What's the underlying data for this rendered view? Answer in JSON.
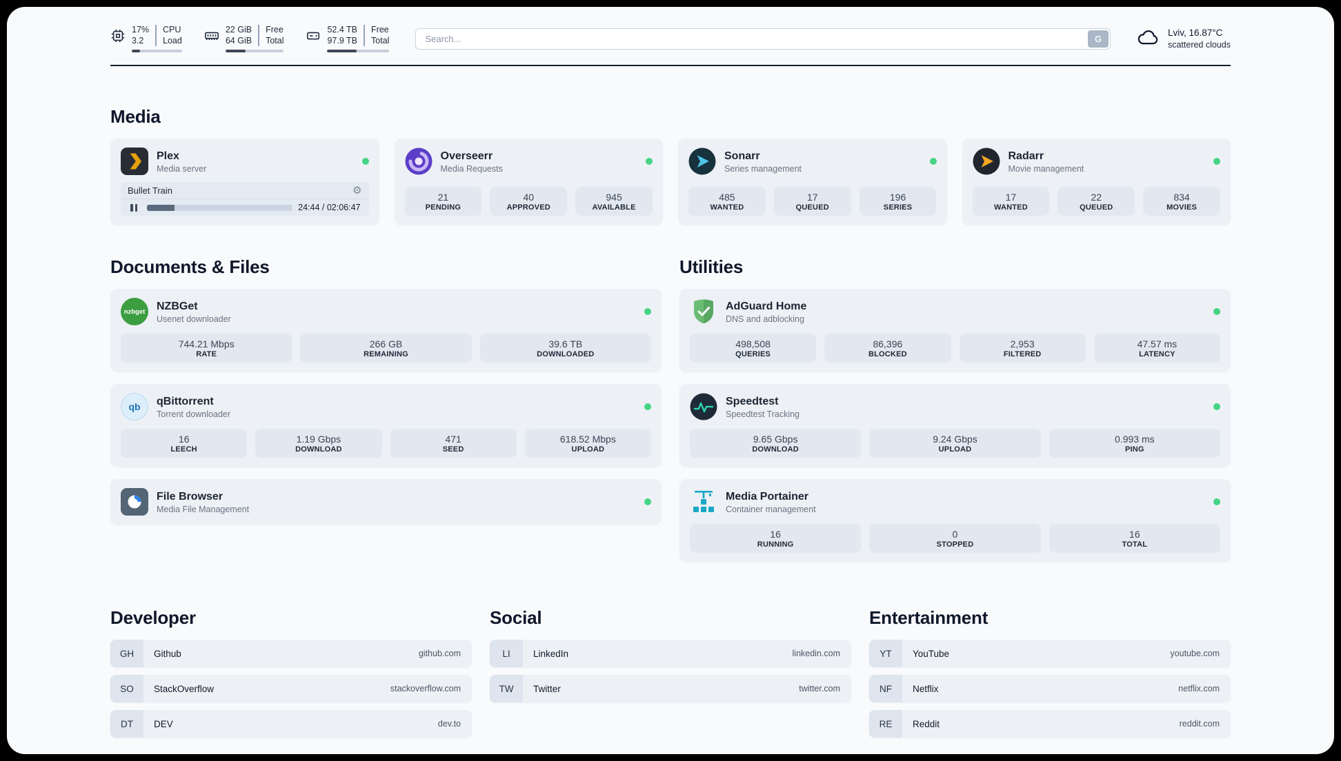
{
  "colors": {
    "page_bg": "#f8fafc",
    "card_bg": "#edf1f6",
    "stat_bg": "#e2e8f0",
    "abbr_bg": "#dee5ee",
    "status_green": "#45d483"
  },
  "topbar": {
    "cpu": {
      "percent": "17%",
      "load": "3.2",
      "label_top": "CPU",
      "label_bottom": "Load",
      "bar_percent": 17
    },
    "memory": {
      "free": "22 GiB",
      "total": "64 GiB",
      "label_top": "Free",
      "label_bottom": "Total",
      "bar_percent": 34
    },
    "disk": {
      "free": "52.4 TB",
      "total": "97.9 TB",
      "label_top": "Free",
      "label_bottom": "Total",
      "bar_percent": 47
    },
    "search": {
      "placeholder": "Search...",
      "button_label": "G"
    },
    "weather": {
      "location": "Lviv, 16.87°C",
      "condition": "scattered clouds"
    }
  },
  "sections": {
    "media": {
      "title": "Media",
      "apps": [
        {
          "name": "Plex",
          "desc": "Media server",
          "player": {
            "title": "Bullet Train",
            "time": "24:44 / 02:06:47",
            "progress": 19
          }
        },
        {
          "name": "Overseerr",
          "desc": "Media Requests",
          "stats": [
            {
              "value": "21",
              "label": "PENDING"
            },
            {
              "value": "40",
              "label": "APPROVED"
            },
            {
              "value": "945",
              "label": "AVAILABLE"
            }
          ]
        },
        {
          "name": "Sonarr",
          "desc": "Series management",
          "stats": [
            {
              "value": "485",
              "label": "WANTED"
            },
            {
              "value": "17",
              "label": "QUEUED"
            },
            {
              "value": "196",
              "label": "SERIES"
            }
          ]
        },
        {
          "name": "Radarr",
          "desc": "Movie management",
          "stats": [
            {
              "value": "17",
              "label": "WANTED"
            },
            {
              "value": "22",
              "label": "QUEUED"
            },
            {
              "value": "834",
              "label": "MOVIES"
            }
          ]
        }
      ]
    },
    "documents": {
      "title": "Documents & Files",
      "apps": [
        {
          "name": "NZBGet",
          "desc": "Usenet downloader",
          "icon_text": "nzbget",
          "stats": [
            {
              "value": "744.21 Mbps",
              "label": "RATE"
            },
            {
              "value": "266 GB",
              "label": "REMAINING"
            },
            {
              "value": "39.6 TB",
              "label": "DOWNLOADED"
            }
          ]
        },
        {
          "name": "qBittorrent",
          "desc": "Torrent downloader",
          "icon_text": "qb",
          "stats": [
            {
              "value": "16",
              "label": "LEECH"
            },
            {
              "value": "1.19 Gbps",
              "label": "DOWNLOAD"
            },
            {
              "value": "471",
              "label": "SEED"
            },
            {
              "value": "618.52 Mbps",
              "label": "UPLOAD"
            }
          ]
        },
        {
          "name": "File Browser",
          "desc": "Media File Management"
        }
      ]
    },
    "utilities": {
      "title": "Utilities",
      "apps": [
        {
          "name": "AdGuard Home",
          "desc": "DNS and adblocking",
          "stats": [
            {
              "value": "498,508",
              "label": "QUERIES"
            },
            {
              "value": "86,396",
              "label": "BLOCKED"
            },
            {
              "value": "2,953",
              "label": "FILTERED"
            },
            {
              "value": "47.57 ms",
              "label": "LATENCY"
            }
          ]
        },
        {
          "name": "Speedtest",
          "desc": "Speedtest Tracking",
          "stats": [
            {
              "value": "9.65 Gbps",
              "label": "DOWNLOAD"
            },
            {
              "value": "9.24 Gbps",
              "label": "UPLOAD"
            },
            {
              "value": "0.993 ms",
              "label": "PING"
            }
          ]
        },
        {
          "name": "Media Portainer",
          "desc": "Container management",
          "stats": [
            {
              "value": "16",
              "label": "RUNNING"
            },
            {
              "value": "0",
              "label": "STOPPED"
            },
            {
              "value": "16",
              "label": "TOTAL"
            }
          ]
        }
      ]
    },
    "bookmarks": [
      {
        "title": "Developer",
        "items": [
          {
            "abbr": "GH",
            "name": "Github",
            "url": "github.com"
          },
          {
            "abbr": "SO",
            "name": "StackOverflow",
            "url": "stackoverflow.com"
          },
          {
            "abbr": "DT",
            "name": "DEV",
            "url": "dev.to"
          }
        ]
      },
      {
        "title": "Social",
        "items": [
          {
            "abbr": "LI",
            "name": "LinkedIn",
            "url": "linkedin.com"
          },
          {
            "abbr": "TW",
            "name": "Twitter",
            "url": "twitter.com"
          }
        ]
      },
      {
        "title": "Entertainment",
        "items": [
          {
            "abbr": "YT",
            "name": "YouTube",
            "url": "youtube.com"
          },
          {
            "abbr": "NF",
            "name": "Netflix",
            "url": "netflix.com"
          },
          {
            "abbr": "RE",
            "name": "Reddit",
            "url": "reddit.com"
          }
        ]
      }
    ]
  }
}
